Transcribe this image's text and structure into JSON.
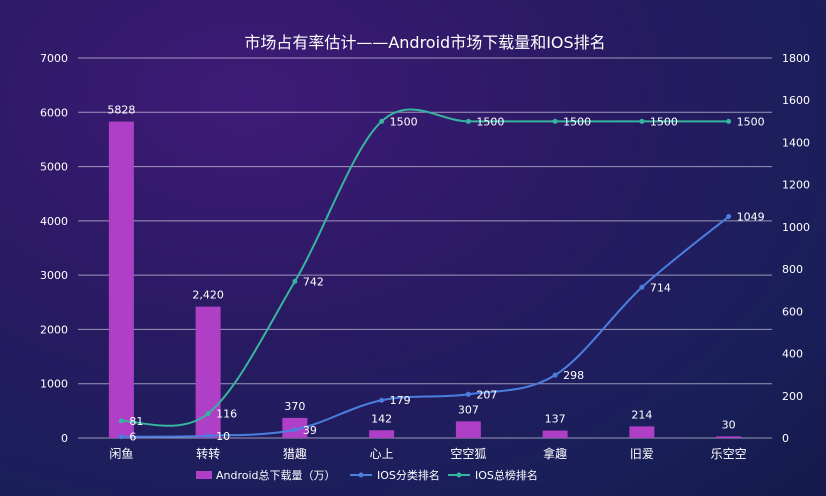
{
  "chart_data": {
    "type": "bar",
    "title": "市场占有率估计——Android市场下载量和IOS排名",
    "categories": [
      "闲鱼",
      "转转",
      "猎趣",
      "心上",
      "空空狐",
      "拿趣",
      "旧爱",
      "乐空空"
    ],
    "series": [
      {
        "name": "Android总下载量（万）",
        "type": "bar",
        "axis": "left",
        "color": "#b03fc8",
        "values": [
          5828,
          2420,
          370,
          142,
          307,
          137,
          214,
          30
        ],
        "labels": [
          "5828",
          "2,420",
          "370",
          "142",
          "307",
          "137",
          "214",
          "30"
        ]
      },
      {
        "name": "IOS分类排名",
        "type": "line",
        "axis": "right",
        "color": "#4a7fe0",
        "values": [
          6,
          10,
          39,
          179,
          207,
          298,
          714,
          1049
        ],
        "labels": [
          "6",
          "10",
          "39",
          "179",
          "207",
          "298",
          "714",
          "1049"
        ]
      },
      {
        "name": "IOS总榜排名",
        "type": "line",
        "axis": "right",
        "color": "#36b5a0",
        "values": [
          81,
          116,
          742,
          1500,
          1500,
          1500,
          1500,
          1500
        ],
        "labels": [
          "81",
          "116",
          "742",
          "1500",
          "1500",
          "1500",
          "1500",
          "1500"
        ]
      }
    ],
    "yleft": {
      "min": 0,
      "max": 7000,
      "ticks": [
        "0",
        "1000",
        "2000",
        "3000",
        "4000",
        "5000",
        "6000",
        "7000"
      ]
    },
    "yright": {
      "min": 0,
      "max": 1800,
      "ticks": [
        "0",
        "200",
        "400",
        "600",
        "800",
        "1000",
        "1200",
        "1400",
        "1600",
        "1800"
      ]
    },
    "grid": true,
    "legend": "bottom"
  }
}
